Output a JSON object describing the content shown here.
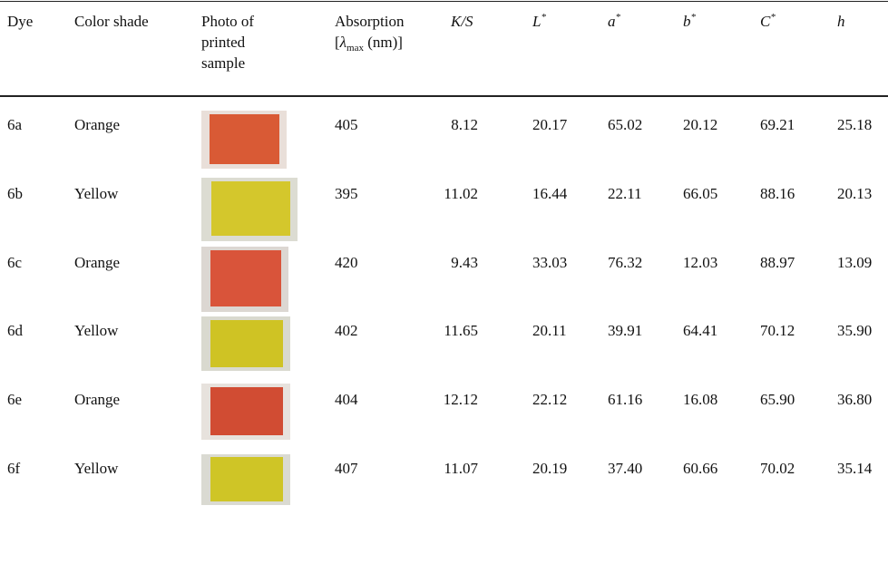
{
  "table": {
    "header": {
      "dye": "Dye",
      "shade": "Color shade",
      "photo": [
        "Photo of",
        "printed",
        "sample"
      ],
      "absorption": {
        "line1": "Absorption",
        "pre": "[",
        "symbol": "λ",
        "sub": "max",
        "post": " (nm)]"
      },
      "ks": "K/S",
      "L": {
        "main": "L",
        "sup": "*"
      },
      "a": {
        "main": "a",
        "sup": "*"
      },
      "b": {
        "main": "b",
        "sup": "*"
      },
      "C": {
        "main": "C",
        "sup": "*"
      },
      "h": "h"
    },
    "rows": [
      [
        "6a",
        "Orange",
        "405",
        "8.12",
        "20.17",
        "65.02",
        "20.12",
        "69.21",
        "25.18"
      ],
      [
        "6b",
        "Yellow",
        "395",
        "11.02",
        "16.44",
        "22.11",
        "66.05",
        "88.16",
        "20.13"
      ],
      [
        "6c",
        "Orange",
        "420",
        "9.43",
        "33.03",
        "76.32",
        "12.03",
        "88.97",
        "13.09"
      ],
      [
        "6d",
        "Yellow",
        "402",
        "11.65",
        "20.11",
        "39.91",
        "64.41",
        "70.12",
        "35.90"
      ],
      [
        "6e",
        "Orange",
        "404",
        "12.12",
        "22.12",
        "61.16",
        "16.08",
        "65.90",
        "36.80"
      ],
      [
        "6f",
        "Yellow",
        "407",
        "11.07",
        "20.19",
        "37.40",
        "60.66",
        "70.02",
        "35.14"
      ]
    ]
  }
}
